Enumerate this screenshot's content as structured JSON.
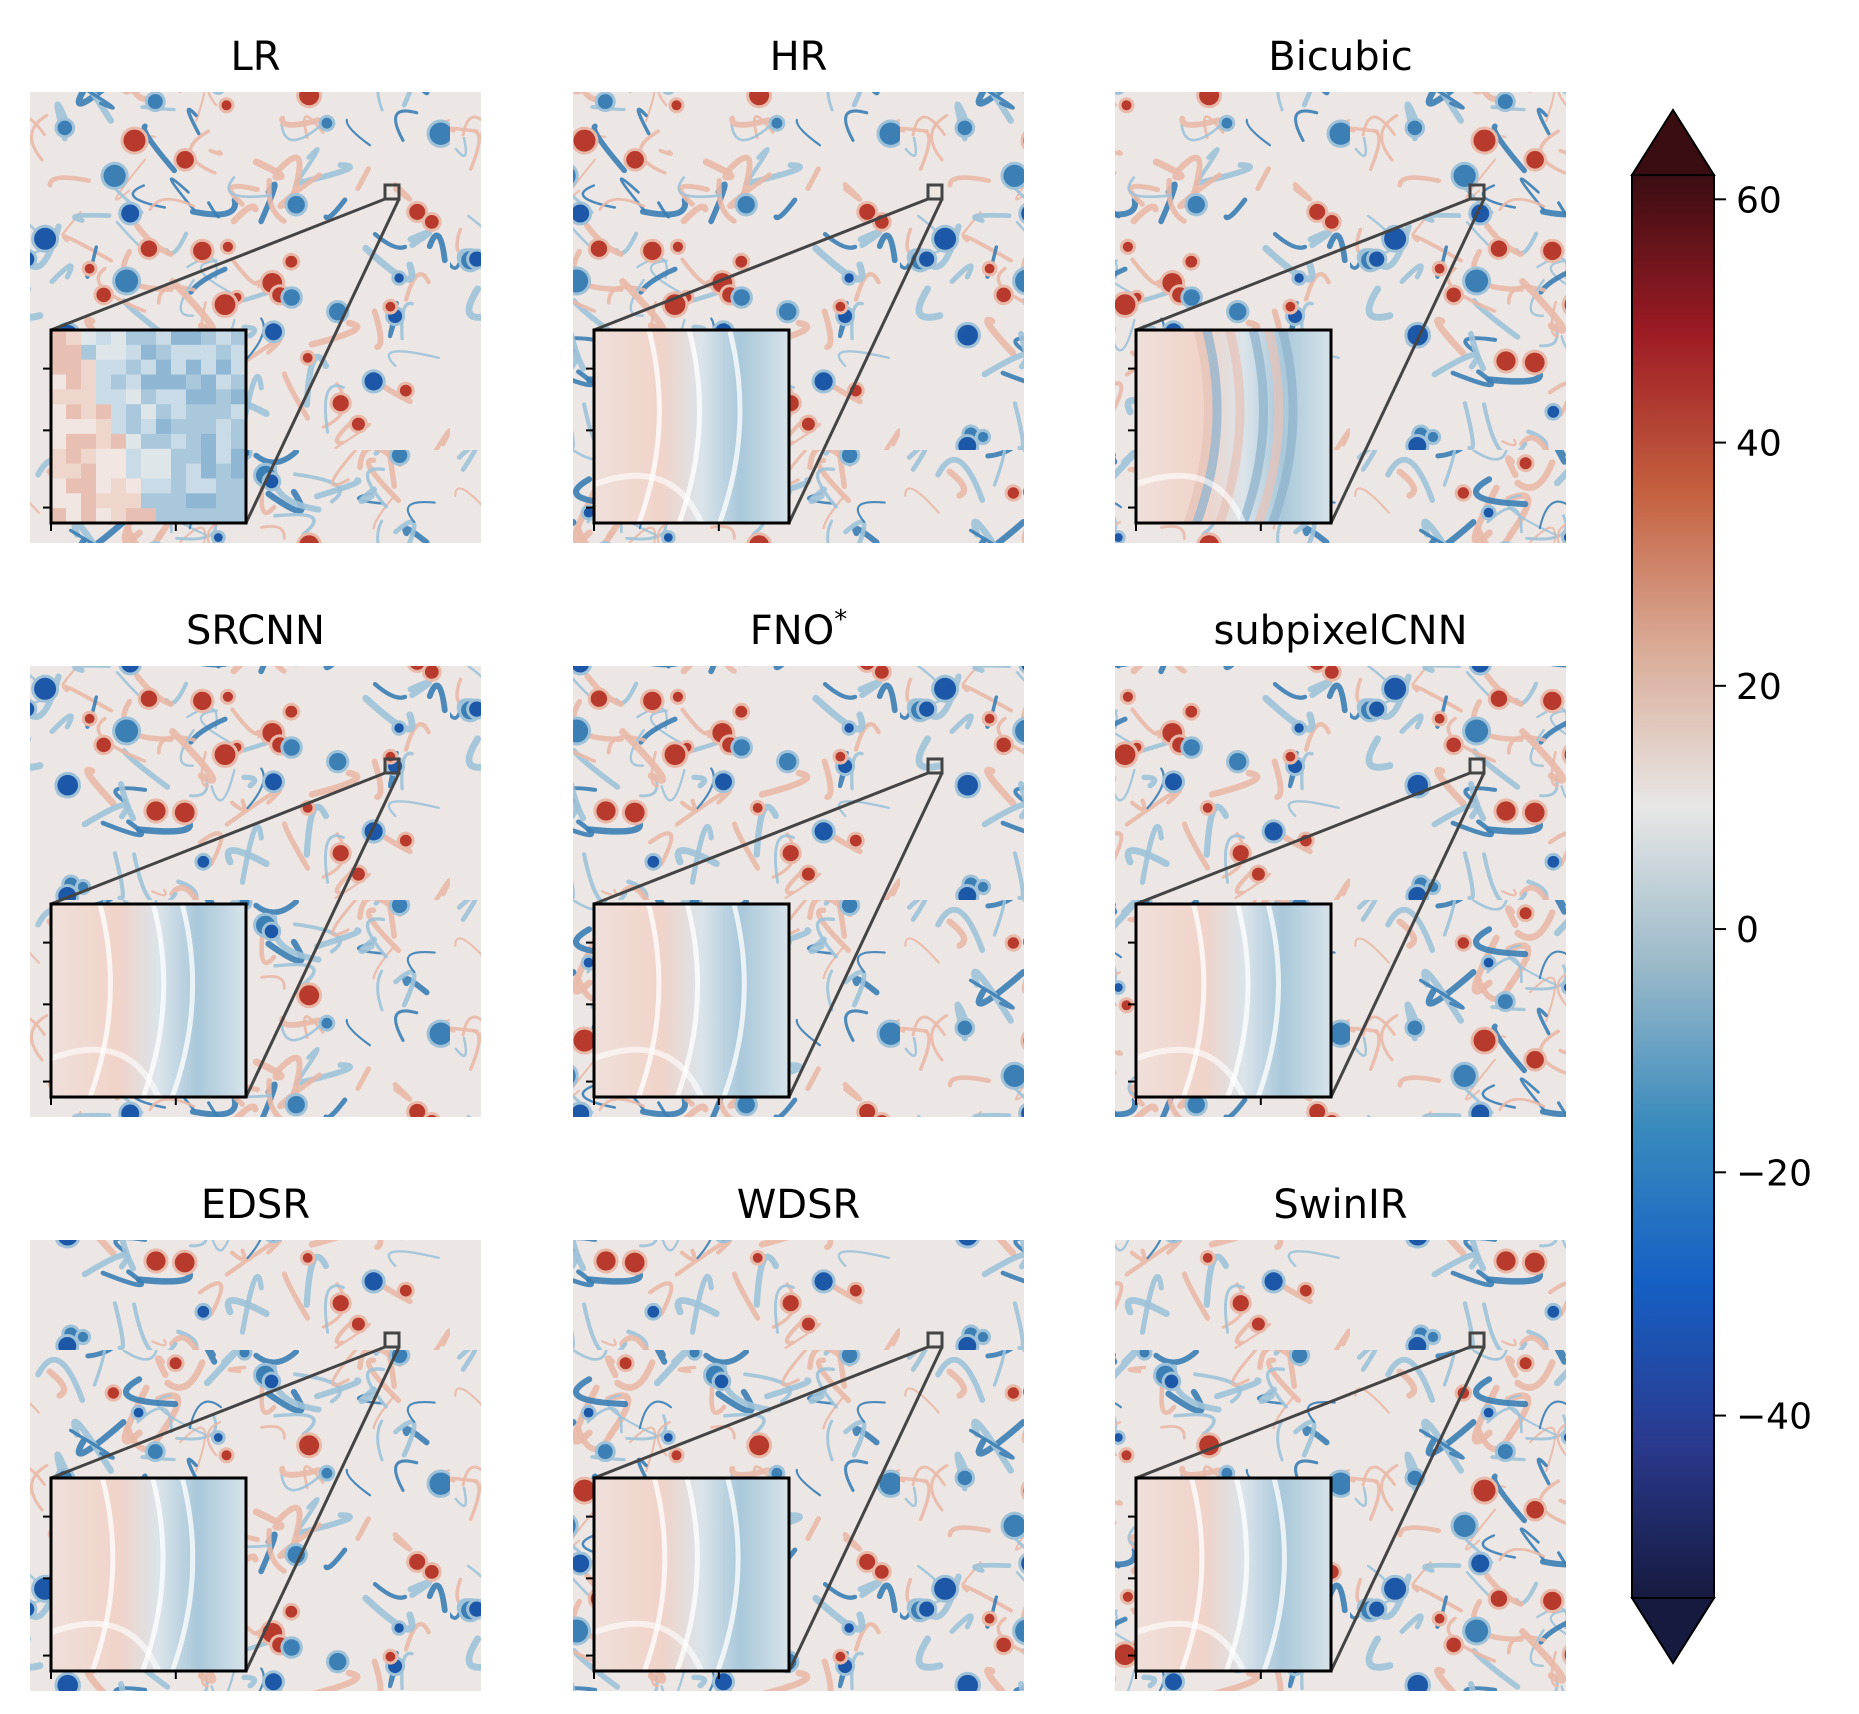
{
  "figure": {
    "panels": [
      {
        "title": "LR",
        "style": "pixelated"
      },
      {
        "title": "HR",
        "style": "smooth"
      },
      {
        "title": "Bicubic",
        "style": "blurry"
      },
      {
        "title": "SRCNN",
        "style": "smooth"
      },
      {
        "title": "FNO",
        "title_sup": "*",
        "style": "smooth"
      },
      {
        "title": "subpixelCNN",
        "style": "smooth"
      },
      {
        "title": "EDSR",
        "style": "smooth"
      },
      {
        "title": "WDSR",
        "style": "smooth"
      },
      {
        "title": "SwinIR",
        "style": "smooth"
      }
    ]
  },
  "colorbar": {
    "ticks": [
      "60",
      "40",
      "20",
      "0",
      "−20",
      "−40"
    ],
    "tick_values": [
      60,
      40,
      20,
      0,
      -20,
      -40
    ],
    "range": [
      -55,
      62
    ],
    "extend": "both",
    "colors": [
      "#161a3f",
      "#2a3a8f",
      "#1560c4",
      "#3a8bbd",
      "#9ab9c9",
      "#e8e7e6",
      "#d9ab97",
      "#c4603f",
      "#9d1b24",
      "#3a0d12"
    ]
  },
  "field_colors": {
    "neutral": "#ece7e5",
    "light_red": "#e9b9a9",
    "red": "#b83a2d",
    "light_blue": "#9fc2d9",
    "blue": "#3b7fb5",
    "dark_blue": "#1d57a8"
  }
}
